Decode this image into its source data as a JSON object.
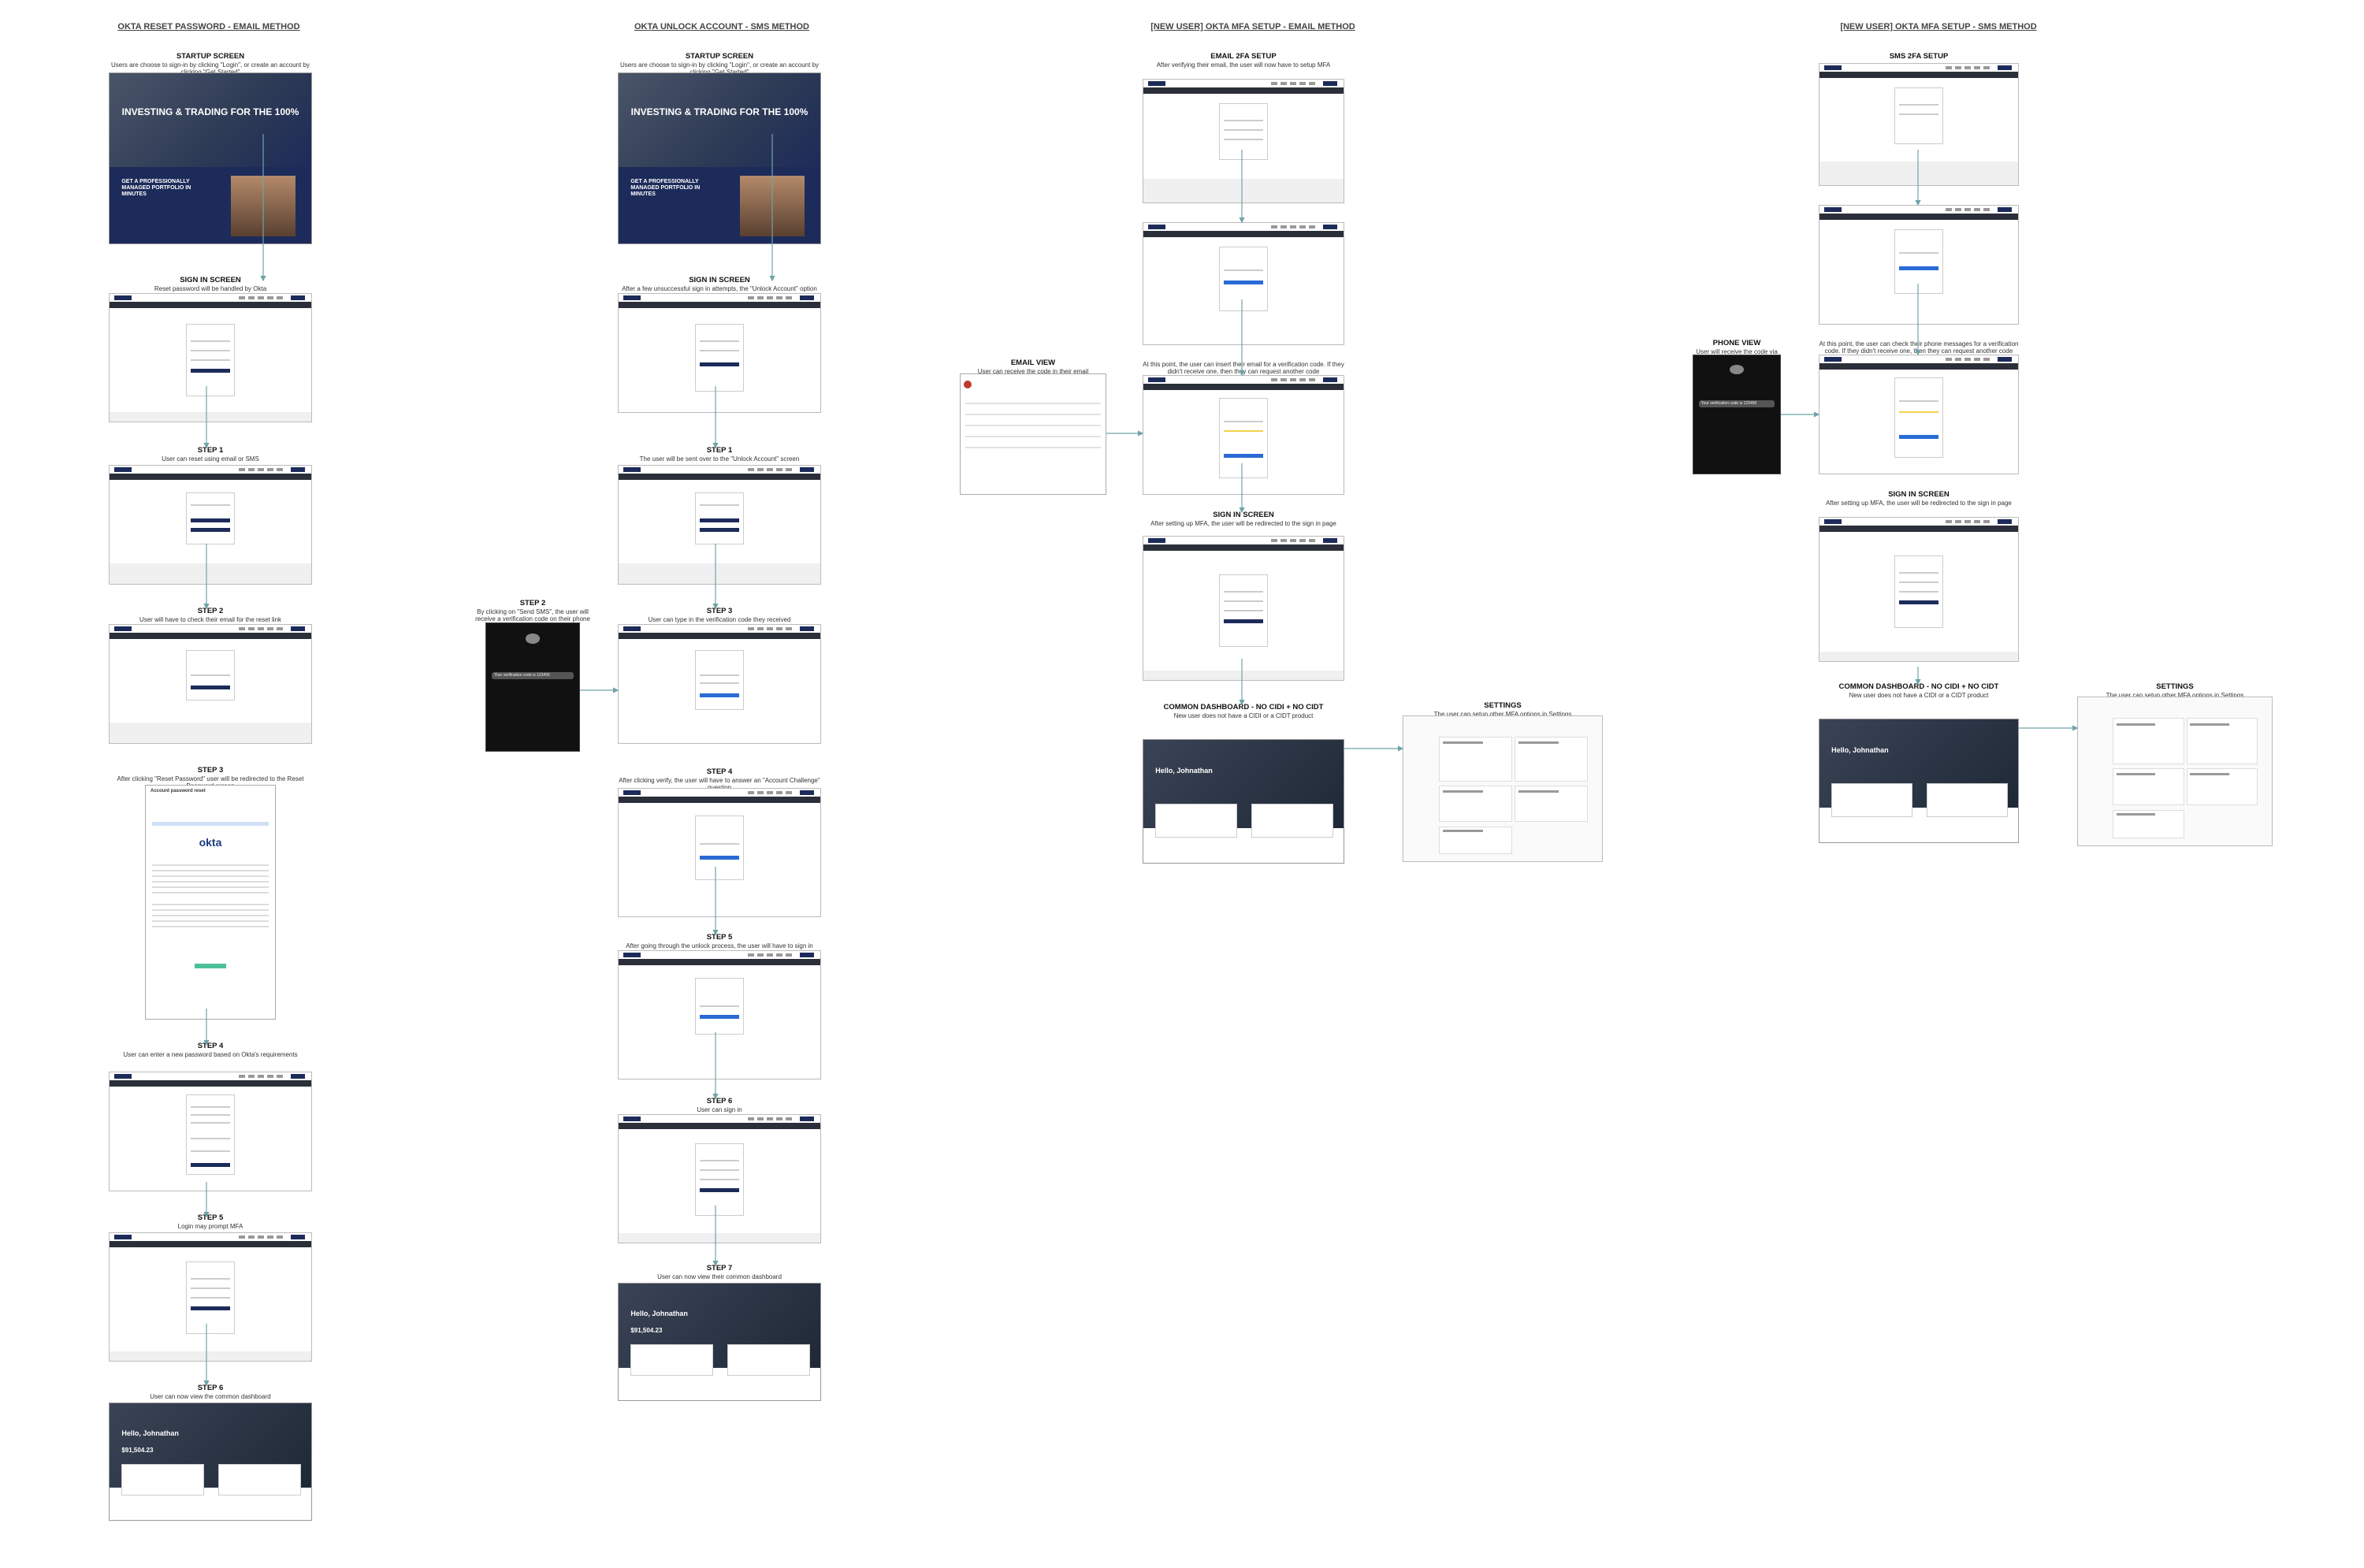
{
  "columns": [
    {
      "title": "OKTA RESET PASSWORD - EMAIL METHOD"
    },
    {
      "title": "OKTA UNLOCK ACCOUNT - SMS METHOD"
    },
    {
      "title": "[NEW USER] OKTA MFA SETUP - EMAIL METHOD"
    },
    {
      "title": "[NEW USER] OKTA MFA SETUP - SMS METHOD"
    }
  ],
  "col1": {
    "startup": {
      "title": "STARTUP SCREEN",
      "desc": "Users are choose to sign-in by clicking \"Login\", or create an account by clicking \"Get Started\""
    },
    "signin": {
      "title": "SIGN IN SCREEN",
      "desc": "Reset password will be handled by Okta"
    },
    "step1": {
      "title": "STEP 1",
      "desc": "User can reset using email or SMS"
    },
    "step2": {
      "title": "STEP 2",
      "desc": "User will have to check their email for the reset link"
    },
    "step3": {
      "title": "STEP 3",
      "desc": "After clicking \"Reset Password\" user will be redirected to the Reset Password screen"
    },
    "step4": {
      "title": "STEP 4",
      "desc": "User can enter a new password based on Okta's requirements"
    },
    "step5": {
      "title": "STEP 5",
      "desc": "Login may prompt MFA"
    },
    "step6": {
      "title": "STEP 6",
      "desc": "User can now view the common dashboard"
    }
  },
  "col2": {
    "startup": {
      "title": "STARTUP SCREEN",
      "desc": "Users are choose to sign-in by clicking \"Login\", or create an account by clicking \"Get Started\""
    },
    "signin": {
      "title": "SIGN IN SCREEN",
      "desc": "After a few unsuccessful sign in attempts, the \"Unlock Account\" option shows up"
    },
    "step1": {
      "title": "STEP 1",
      "desc": "The user will be sent over to the \"Unlock Account\" screen"
    },
    "step2": {
      "title": "STEP 2",
      "desc": "By clicking on \"Send SMS\", the user will receive a verification code on their phone"
    },
    "step3": {
      "title": "STEP 3",
      "desc": "User can type in the verification code they received"
    },
    "step4": {
      "title": "STEP 4",
      "desc": "After clicking verify, the user will have to answer an \"Account Challenge\" question"
    },
    "step5": {
      "title": "STEP 5",
      "desc": "After going through the unlock process, the user will have to sign in again"
    },
    "step6": {
      "title": "STEP 6",
      "desc": "User can sign in"
    },
    "step7": {
      "title": "STEP 7",
      "desc": "User can now view their common dashboard"
    }
  },
  "col3": {
    "email2fa": {
      "title": "EMAIL 2FA SETUP",
      "desc": "After verifying their email, the user will now have to setup MFA"
    },
    "emailview": {
      "title": "EMAIL VIEW",
      "desc": "User can receive the code in their email"
    },
    "verify": {
      "desc": "At this point, the user can insert their email for a verification code. If they didn't receive one, then they can request another code"
    },
    "signin": {
      "title": "SIGN IN SCREEN",
      "desc": "After setting up MFA, the user will be redirected to the sign in page"
    },
    "dashboard": {
      "title": "COMMON DASHBOARD - NO CIDI + NO CIDT",
      "desc": "New user does not have a CIDI or a CIDT product"
    },
    "settings": {
      "title": "SETTINGS",
      "desc": "The user can setup other MFA options in Settings"
    }
  },
  "col4": {
    "sms2fa": {
      "title": "SMS 2FA SETUP"
    },
    "phoneview": {
      "title": "PHONE VIEW",
      "desc": "User will receive the code via SMS"
    },
    "verify": {
      "desc": "At this point, the user can check their phone messages for a verification code. If they didn't receive one, then they can request another code"
    },
    "signin": {
      "title": "SIGN IN SCREEN",
      "desc": "After setting up MFA, the user will be redirected to the sign in page"
    },
    "dashboard": {
      "title": "COMMON DASHBOARD - NO CIDI + NO CIDT",
      "desc": "New user does not have a CIDI or a CIDT product"
    },
    "settings": {
      "title": "SETTINGS",
      "desc": "The user can setup other MFA options in Settings"
    }
  },
  "mock": {
    "hero_title": "INVESTING & TRADING FOR THE 100%",
    "hero_sub": "GET A PROFESSIONALLY MANAGED PORTFOLIO IN MINUTES",
    "hello": "Hello, Johnathan",
    "amount": "$91,504.23",
    "okta": "okta",
    "email_subject": "Account password reset",
    "notif": "Your verification code is 123456"
  },
  "colors": {
    "navy": "#1d2b5a",
    "blue": "#2a6bd6",
    "arrow": "#6fa3a8"
  }
}
